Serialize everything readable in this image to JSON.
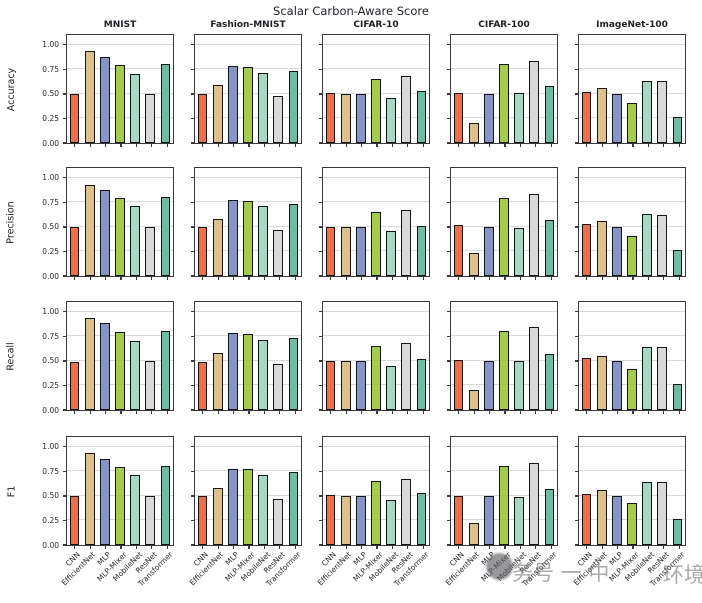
{
  "title": "Scalar Carbon-Aware Score",
  "watermark": {
    "logo_icon": "blurred-round-logo",
    "text_left": "务号 一 中",
    "text_right": "环境"
  },
  "chart_data": {
    "type": "bar",
    "layout": "grid-4rows-5cols",
    "grid": true,
    "legend": "none",
    "ylim": [
      0,
      1.1
    ],
    "yticks": [
      0.0,
      0.25,
      0.5,
      0.75,
      1.0
    ],
    "ytick_labels": [
      "0.00",
      "0.25",
      "0.50",
      "0.75",
      "1.00"
    ],
    "row_metrics": [
      "Accuracy",
      "Precision",
      "Recall",
      "F1"
    ],
    "col_datasets": [
      "MNIST",
      "Fashion-MNIST",
      "CIFAR-10",
      "CIFAR-100",
      "ImageNet-100"
    ],
    "categories": [
      "CNN",
      "EfficientNet",
      "MLP",
      "MLP-Mixer",
      "MobileNet",
      "ResNet",
      "Transformer"
    ],
    "bar_colors": [
      "#e8714c",
      "#dcc088",
      "#8695c7",
      "#a5cb4c",
      "#a8d8c4",
      "#d9d9d9",
      "#68bda2"
    ],
    "bar_edge_color": "#141414",
    "values": {
      "Accuracy": {
        "MNIST": [
          0.5,
          0.94,
          0.88,
          0.79,
          0.7,
          0.5,
          0.8
        ],
        "Fashion-MNIST": [
          0.5,
          0.59,
          0.78,
          0.77,
          0.71,
          0.48,
          0.73
        ],
        "CIFAR-10": [
          0.51,
          0.5,
          0.5,
          0.65,
          0.46,
          0.68,
          0.53
        ],
        "CIFAR-100": [
          0.51,
          0.2,
          0.5,
          0.8,
          0.51,
          0.84,
          0.58
        ],
        "ImageNet-100": [
          0.52,
          0.56,
          0.5,
          0.41,
          0.63,
          0.63,
          0.26
        ]
      },
      "Precision": {
        "MNIST": [
          0.5,
          0.93,
          0.88,
          0.79,
          0.71,
          0.5,
          0.8
        ],
        "Fashion-MNIST": [
          0.5,
          0.58,
          0.77,
          0.76,
          0.71,
          0.47,
          0.73
        ],
        "CIFAR-10": [
          0.5,
          0.5,
          0.5,
          0.65,
          0.46,
          0.67,
          0.51
        ],
        "CIFAR-100": [
          0.52,
          0.23,
          0.5,
          0.79,
          0.49,
          0.84,
          0.57
        ],
        "ImageNet-100": [
          0.53,
          0.56,
          0.5,
          0.41,
          0.63,
          0.62,
          0.26
        ]
      },
      "Recall": {
        "MNIST": [
          0.49,
          0.94,
          0.89,
          0.79,
          0.7,
          0.5,
          0.8
        ],
        "Fashion-MNIST": [
          0.49,
          0.58,
          0.78,
          0.77,
          0.71,
          0.47,
          0.73
        ],
        "CIFAR-10": [
          0.5,
          0.5,
          0.5,
          0.65,
          0.45,
          0.68,
          0.52
        ],
        "CIFAR-100": [
          0.51,
          0.2,
          0.5,
          0.8,
          0.5,
          0.85,
          0.57
        ],
        "ImageNet-100": [
          0.53,
          0.55,
          0.5,
          0.42,
          0.64,
          0.64,
          0.27
        ]
      },
      "F1": {
        "MNIST": [
          0.5,
          0.94,
          0.88,
          0.79,
          0.71,
          0.5,
          0.8
        ],
        "Fashion-MNIST": [
          0.5,
          0.58,
          0.77,
          0.77,
          0.71,
          0.47,
          0.74
        ],
        "CIFAR-10": [
          0.51,
          0.5,
          0.5,
          0.65,
          0.46,
          0.67,
          0.53
        ],
        "CIFAR-100": [
          0.5,
          0.22,
          0.5,
          0.8,
          0.49,
          0.84,
          0.57
        ],
        "ImageNet-100": [
          0.52,
          0.56,
          0.5,
          0.43,
          0.64,
          0.64,
          0.27
        ]
      }
    }
  }
}
